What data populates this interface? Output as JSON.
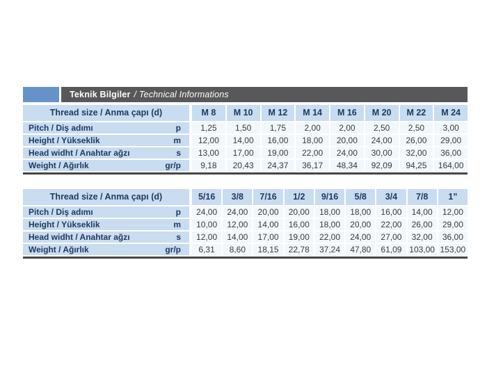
{
  "header": {
    "title_bold": "Teknik Bilgiler",
    "title_italic": "/ Technical Informations"
  },
  "colors": {
    "accent_blue": "#6593C9",
    "bar_gray": "#58585A",
    "cell_blue": "#C9DCF0",
    "cell_light": "#F2F7FB",
    "text_navy": "#1F3A60",
    "text_dark": "#3A3A3A",
    "border_dark": "#454547",
    "page_background": "#ffffff"
  },
  "tables": [
    {
      "name": "metric-threads",
      "header_label": "Thread size / Anma çapı (d)",
      "columns": [
        "M 8",
        "M 10",
        "M 12",
        "M 14",
        "M 16",
        "M 20",
        "M 22",
        "M 24"
      ],
      "rows": [
        {
          "label": "Pitch / Diş adımı",
          "symbol": "p",
          "values": [
            "1,25",
            "1,50",
            "1,75",
            "2,00",
            "2,00",
            "2,50",
            "2,50",
            "3,00"
          ]
        },
        {
          "label": "Height / Yükseklik",
          "symbol": "m",
          "values": [
            "12,00",
            "14,00",
            "16,00",
            "18,00",
            "20,00",
            "24,00",
            "26,00",
            "29,00"
          ]
        },
        {
          "label": "Head widht / Anahtar ağzı",
          "symbol": "s",
          "values": [
            "13,00",
            "17,00",
            "19,00",
            "22,00",
            "24,00",
            "30,00",
            "32,00",
            "36,00"
          ]
        },
        {
          "label": "Weight / Ağırlık",
          "symbol": "gr/p",
          "values": [
            "9,18",
            "20,43",
            "24,37",
            "36,17",
            "48,34",
            "92,09",
            "94,25",
            "164,00"
          ]
        }
      ]
    },
    {
      "name": "imperial-threads",
      "header_label": "Thread size / Anma çapı (d)",
      "columns": [
        "5/16",
        "3/8",
        "7/16",
        "1/2",
        "9/16",
        "5/8",
        "3/4",
        "7/8",
        "1\""
      ],
      "rows": [
        {
          "label": "Pitch / Diş adımı",
          "symbol": "p",
          "values": [
            "24,00",
            "24,00",
            "20,00",
            "20,00",
            "18,00",
            "18,00",
            "16,00",
            "14,00",
            "12,00"
          ]
        },
        {
          "label": "Height / Yükseklik",
          "symbol": "m",
          "values": [
            "10,00",
            "12,00",
            "14,00",
            "16,00",
            "18,00",
            "20,00",
            "22,00",
            "26,00",
            "29,00"
          ]
        },
        {
          "label": "Head widht / Anahtar ağzı",
          "symbol": "s",
          "values": [
            "12,00",
            "14,00",
            "17,00",
            "19,00",
            "22,00",
            "24,00",
            "27,00",
            "32,00",
            "36,00"
          ]
        },
        {
          "label": "Weight / Ağırlık",
          "symbol": "gr/p",
          "values": [
            "6,31",
            "8,60",
            "18,15",
            "22,78",
            "37,24",
            "47,80",
            "61,09",
            "103,00",
            "153,00"
          ]
        }
      ]
    }
  ]
}
